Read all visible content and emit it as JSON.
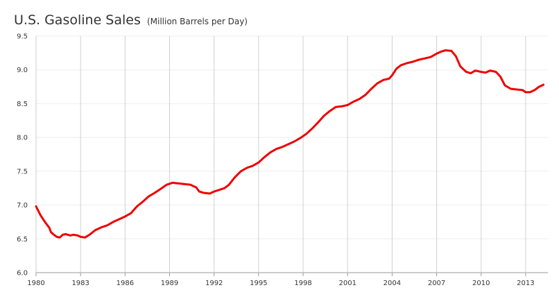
{
  "chart_data": {
    "type": "line",
    "title": "U.S. Gasoline Sales",
    "subtitle": "(Million Barrels per Day)",
    "xlabel": "",
    "ylabel": "",
    "xlim": [
      1980,
      2014.5
    ],
    "ylim": [
      6.0,
      9.5
    ],
    "x_ticks": [
      1980,
      1983,
      1986,
      1989,
      1992,
      1995,
      1998,
      2001,
      2004,
      2007,
      2010,
      2013
    ],
    "x_tick_labels": [
      "1980",
      "1983",
      "1986",
      "1989",
      "1992",
      "1995",
      "1998",
      "2001",
      "2004",
      "2007",
      "2010",
      "2013"
    ],
    "y_ticks": [
      6.0,
      6.5,
      7.0,
      7.5,
      8.0,
      8.5,
      9.0,
      9.5
    ],
    "y_tick_labels": [
      "6.0",
      "6.5",
      "7.0",
      "7.5",
      "8.0",
      "8.5",
      "9.0",
      "9.5"
    ],
    "grid": {
      "vertical": true,
      "horizontal": true
    },
    "series": [
      {
        "color": "#ee0000",
        "points": [
          [
            1980.0,
            6.98
          ],
          [
            1980.3,
            6.85
          ],
          [
            1980.6,
            6.75
          ],
          [
            1980.9,
            6.66
          ],
          [
            1981.0,
            6.6
          ],
          [
            1981.2,
            6.56
          ],
          [
            1981.4,
            6.53
          ],
          [
            1981.6,
            6.52
          ],
          [
            1981.8,
            6.56
          ],
          [
            1982.0,
            6.57
          ],
          [
            1982.3,
            6.55
          ],
          [
            1982.5,
            6.56
          ],
          [
            1982.8,
            6.55
          ],
          [
            1983.0,
            6.53
          ],
          [
            1983.3,
            6.52
          ],
          [
            1983.6,
            6.56
          ],
          [
            1984.0,
            6.63
          ],
          [
            1984.4,
            6.67
          ],
          [
            1984.8,
            6.7
          ],
          [
            1985.2,
            6.75
          ],
          [
            1985.6,
            6.79
          ],
          [
            1986.0,
            6.83
          ],
          [
            1986.4,
            6.88
          ],
          [
            1986.8,
            6.98
          ],
          [
            1987.2,
            7.05
          ],
          [
            1987.6,
            7.13
          ],
          [
            1988.0,
            7.18
          ],
          [
            1988.4,
            7.24
          ],
          [
            1988.8,
            7.3
          ],
          [
            1989.2,
            7.33
          ],
          [
            1989.6,
            7.32
          ],
          [
            1990.0,
            7.31
          ],
          [
            1990.4,
            7.3
          ],
          [
            1990.8,
            7.26
          ],
          [
            1991.0,
            7.2
          ],
          [
            1991.3,
            7.18
          ],
          [
            1991.7,
            7.17
          ],
          [
            1992.0,
            7.2
          ],
          [
            1992.3,
            7.22
          ],
          [
            1992.7,
            7.25
          ],
          [
            1993.0,
            7.3
          ],
          [
            1993.4,
            7.41
          ],
          [
            1993.8,
            7.5
          ],
          [
            1994.2,
            7.55
          ],
          [
            1994.6,
            7.58
          ],
          [
            1995.0,
            7.63
          ],
          [
            1995.4,
            7.71
          ],
          [
            1995.8,
            7.78
          ],
          [
            1996.2,
            7.83
          ],
          [
            1996.6,
            7.86
          ],
          [
            1997.0,
            7.9
          ],
          [
            1997.4,
            7.94
          ],
          [
            1997.8,
            7.99
          ],
          [
            1998.2,
            8.05
          ],
          [
            1998.6,
            8.13
          ],
          [
            1999.0,
            8.22
          ],
          [
            1999.4,
            8.32
          ],
          [
            1999.8,
            8.39
          ],
          [
            2000.2,
            8.45
          ],
          [
            2000.6,
            8.46
          ],
          [
            2001.0,
            8.48
          ],
          [
            2001.4,
            8.53
          ],
          [
            2001.8,
            8.57
          ],
          [
            2002.2,
            8.63
          ],
          [
            2002.6,
            8.72
          ],
          [
            2003.0,
            8.8
          ],
          [
            2003.4,
            8.85
          ],
          [
            2003.8,
            8.87
          ],
          [
            2004.0,
            8.92
          ],
          [
            2004.3,
            9.02
          ],
          [
            2004.6,
            9.07
          ],
          [
            2005.0,
            9.1
          ],
          [
            2005.4,
            9.12
          ],
          [
            2005.8,
            9.15
          ],
          [
            2006.2,
            9.17
          ],
          [
            2006.6,
            9.19
          ],
          [
            2007.0,
            9.24
          ],
          [
            2007.3,
            9.27
          ],
          [
            2007.6,
            9.29
          ],
          [
            2008.0,
            9.28
          ],
          [
            2008.3,
            9.2
          ],
          [
            2008.6,
            9.05
          ],
          [
            2009.0,
            8.97
          ],
          [
            2009.3,
            8.95
          ],
          [
            2009.6,
            8.99
          ],
          [
            2010.0,
            8.97
          ],
          [
            2010.3,
            8.96
          ],
          [
            2010.6,
            8.99
          ],
          [
            2011.0,
            8.97
          ],
          [
            2011.3,
            8.9
          ],
          [
            2011.6,
            8.77
          ],
          [
            2012.0,
            8.72
          ],
          [
            2012.4,
            8.71
          ],
          [
            2012.8,
            8.7
          ],
          [
            2013.0,
            8.67
          ],
          [
            2013.3,
            8.67
          ],
          [
            2013.6,
            8.7
          ],
          [
            2013.9,
            8.75
          ],
          [
            2014.2,
            8.78
          ]
        ]
      }
    ]
  }
}
